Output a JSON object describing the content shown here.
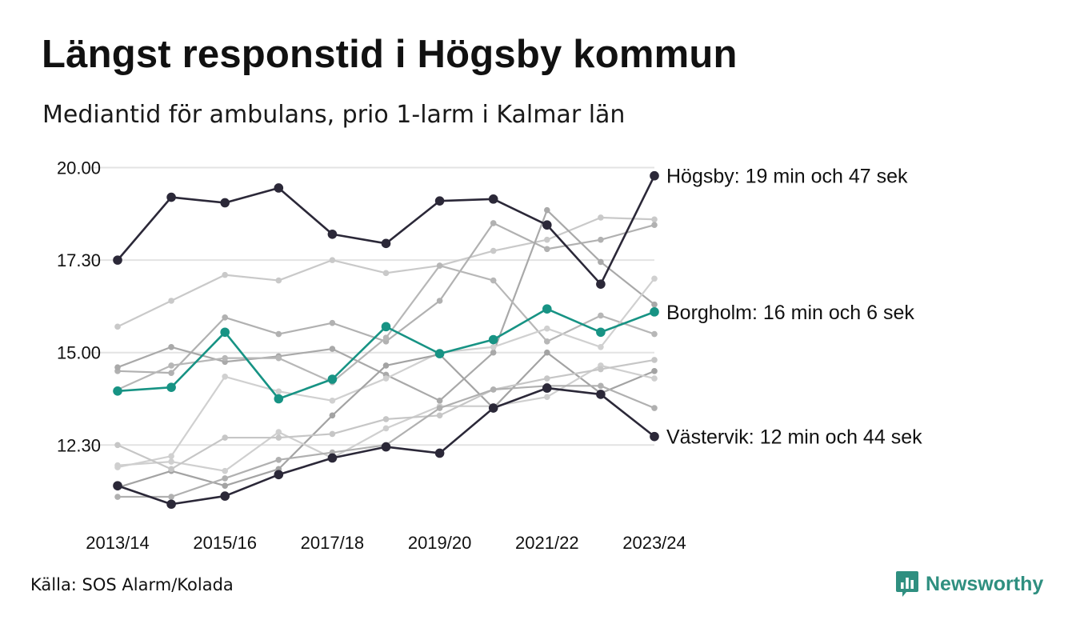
{
  "title": "Längst responstid i Högsby kommun",
  "subtitle": "Mediantid för ambulans, prio 1-larm i Kalmar län",
  "source": "Källa: SOS Alarm/Kolada",
  "brand": {
    "name": "Newsworthy",
    "icon": "newsworthy-chart-bubble-icon",
    "color": "#2f8f80"
  },
  "colors": {
    "highlight_dark": "#2b2838",
    "highlight_teal": "#179384",
    "grid": "#e3e3e3"
  },
  "chart_data": {
    "type": "line",
    "title": "Längst responstid i Högsby kommun",
    "subtitle": "Mediantid för ambulans, prio 1-larm i Kalmar län",
    "xlabel": "",
    "ylabel": "",
    "x": [
      "2013/14",
      "2014/15",
      "2015/16",
      "2016/17",
      "2017/18",
      "2018/19",
      "2019/20",
      "2020/21",
      "2021/22",
      "2022/23",
      "2023/24"
    ],
    "x_tick_labels": [
      "2013/14",
      "2015/16",
      "2017/18",
      "2019/20",
      "2021/22",
      "2023/24"
    ],
    "y_ticks": [
      12.5,
      15.0,
      17.5,
      20.0
    ],
    "y_tick_labels": [
      "12.30",
      "15.00",
      "17.30",
      "20.00"
    ],
    "ylim": [
      10.3,
      20.25
    ],
    "grid": "horizontal",
    "series": [
      {
        "name": "Högsby",
        "label": "Högsby: 19 min och 47 sek",
        "style": "highlight_dark",
        "values": [
          17.5,
          19.2,
          19.05,
          19.45,
          18.2,
          17.95,
          19.1,
          19.15,
          18.45,
          16.85,
          19.78
        ]
      },
      {
        "name": "Borgholm",
        "label": "Borgholm: 16 min och 6 sek",
        "style": "highlight_teal",
        "values": [
          13.96,
          14.06,
          15.55,
          13.75,
          14.28,
          15.7,
          14.97,
          15.35,
          16.18,
          15.55,
          16.1
        ]
      },
      {
        "name": "Västervik",
        "label": "Västervik: 12 min och 44 sek",
        "style": "highlight_dark",
        "values": [
          11.4,
          10.9,
          11.12,
          11.7,
          12.15,
          12.45,
          12.28,
          13.5,
          14.04,
          13.87,
          12.73
        ]
      },
      {
        "style": "background",
        "color": "#c9c9c9",
        "values": [
          15.7,
          16.4,
          17.1,
          16.95,
          17.5,
          17.15,
          17.35,
          17.75,
          18.05,
          18.65,
          18.6
        ]
      },
      {
        "style": "background",
        "color": "#b1b1b1",
        "values": [
          14.5,
          14.45,
          15.95,
          15.5,
          15.8,
          15.3,
          16.4,
          18.5,
          17.8,
          18.05,
          18.45
        ]
      },
      {
        "style": "background",
        "color": "#a9a9a9",
        "values": [
          14.6,
          15.15,
          14.75,
          14.9,
          15.1,
          14.4,
          13.7,
          15.0,
          18.85,
          17.45,
          16.3
        ]
      },
      {
        "style": "background",
        "color": "#b7b7b7",
        "values": [
          14.0,
          14.65,
          14.85,
          14.85,
          14.2,
          15.4,
          17.35,
          16.95,
          15.3,
          16.0,
          15.5
        ]
      },
      {
        "style": "background",
        "color": "#d0d0d0",
        "values": [
          11.9,
          12.2,
          14.35,
          13.95,
          13.7,
          14.3,
          15.0,
          15.15,
          15.65,
          15.15,
          17.0
        ]
      },
      {
        "style": "background",
        "color": "#a3a3a3",
        "values": [
          11.35,
          11.8,
          11.4,
          11.85,
          13.3,
          14.65,
          14.95,
          13.5,
          15.0,
          13.9,
          14.5
        ]
      },
      {
        "style": "background",
        "color": "#cfcfcf",
        "values": [
          11.95,
          12.05,
          11.8,
          12.85,
          12.15,
          12.95,
          13.55,
          13.55,
          13.8,
          14.65,
          14.3
        ]
      },
      {
        "style": "background",
        "color": "#c6c6c6",
        "values": [
          12.5,
          11.85,
          12.7,
          12.7,
          12.8,
          13.2,
          13.3,
          14.0,
          14.3,
          14.55,
          14.8
        ]
      },
      {
        "style": "background",
        "color": "#b0b0b0",
        "values": [
          11.1,
          11.1,
          11.6,
          12.1,
          12.3,
          12.5,
          13.5,
          14.0,
          14.1,
          14.1,
          13.5
        ]
      }
    ]
  }
}
